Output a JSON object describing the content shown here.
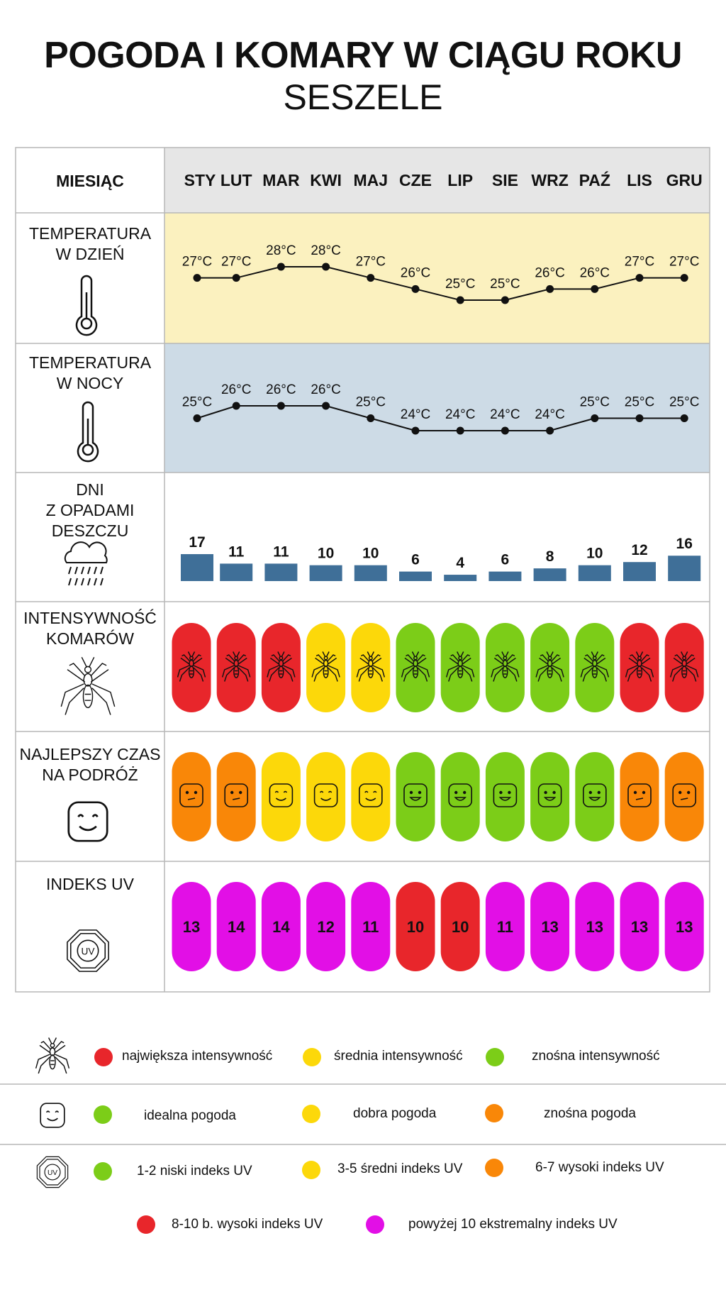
{
  "title": "POGODA I KOMARY W CIĄGU ROKU",
  "subtitle": "SESZELE",
  "header": {
    "label": "MIESIĄC"
  },
  "months": [
    "STY",
    "LUT",
    "MAR",
    "KWI",
    "MAJ",
    "CZE",
    "LIP",
    "SIE",
    "WRZ",
    "PAŹ",
    "LIS",
    "GRU"
  ],
  "rows": {
    "day_temp": {
      "label_l1": "TEMPERATURA",
      "label_l2": "W DZIEŃ",
      "icon": "thermometer-icon",
      "bg": "#fbf1bf"
    },
    "night_temp": {
      "label_l1": "TEMPERATURA",
      "label_l2": "W NOCY",
      "icon": "thermometer-icon",
      "bg": "#cddbe6"
    },
    "rain": {
      "label_l1": "DNI",
      "label_l2": "Z OPADAMI",
      "label_l3": "DESZCZU",
      "icon": "rain-cloud-icon"
    },
    "mosquito": {
      "label_l1": "INTENSYWNOŚĆ",
      "label_l2": "KOMARÓW",
      "icon": "mosquito-icon"
    },
    "travel": {
      "label_l1": "NAJLEPSZY CZAS",
      "label_l2": "NA PODRÓŻ",
      "icon": "smiley-icon"
    },
    "uv": {
      "label_l1": "INDEKS UV",
      "icon": "uv-sun-icon"
    }
  },
  "chart_data": {
    "type": "table",
    "categories": [
      "STY",
      "LUT",
      "MAR",
      "KWI",
      "MAJ",
      "CZE",
      "LIP",
      "SIE",
      "WRZ",
      "PAŹ",
      "LIS",
      "GRU"
    ],
    "series": [
      {
        "name": "TEMPERATURA W DZIEŃ",
        "unit": "°C",
        "values": [
          27,
          27,
          28,
          28,
          27,
          26,
          25,
          25,
          26,
          26,
          27,
          27
        ],
        "labels": [
          "27°C",
          "27°C",
          "28°C",
          "28°C",
          "27°C",
          "26°C",
          "25°C",
          "25°C",
          "26°C",
          "26°C",
          "27°C",
          "27°C"
        ]
      },
      {
        "name": "TEMPERATURA W NOCY",
        "unit": "°C",
        "values": [
          25,
          26,
          26,
          26,
          25,
          24,
          24,
          24,
          24,
          25,
          25,
          25
        ],
        "labels": [
          "25°C",
          "26°C",
          "26°C",
          "26°C",
          "25°C",
          "24°C",
          "24°C",
          "24°C",
          "24°C",
          "25°C",
          "25°C",
          "25°C"
        ]
      },
      {
        "name": "DNI Z OPADAMI DESZCZU",
        "values": [
          17,
          11,
          11,
          10,
          10,
          6,
          4,
          6,
          8,
          10,
          12,
          16
        ],
        "labels": [
          "17",
          "11",
          "11",
          "10",
          "10",
          "6",
          "4",
          "6",
          "8",
          "10",
          "12",
          "16"
        ],
        "color": "#3f6f98"
      },
      {
        "name": "INTENSYWNOŚĆ KOMARÓW",
        "levels": [
          "high",
          "high",
          "high",
          "medium",
          "medium",
          "low",
          "low",
          "low",
          "low",
          "low",
          "high",
          "high"
        ]
      },
      {
        "name": "NAJLEPSZY CZAS NA PODRÓŻ",
        "levels": [
          "tolerable",
          "tolerable",
          "good",
          "good",
          "good",
          "ideal",
          "ideal",
          "ideal",
          "ideal",
          "ideal",
          "tolerable",
          "tolerable"
        ]
      },
      {
        "name": "INDEKS UV",
        "values": [
          13,
          14,
          14,
          12,
          11,
          10,
          10,
          11,
          13,
          13,
          13,
          13
        ],
        "labels": [
          "13",
          "14",
          "14",
          "12",
          "11",
          "10",
          "10",
          "11",
          "13",
          "13",
          "13",
          "13"
        ]
      }
    ]
  },
  "colors": {
    "red": "#e8262b",
    "yellow": "#fcd80a",
    "green": "#7ccd18",
    "orange": "#f98708",
    "magenta": "#e20fe6",
    "bar": "#3f6f98",
    "header_bg": "#e6e6e6",
    "grid": "#b7b7b7"
  },
  "legend": {
    "mosquito": {
      "icon": "mosquito-icon",
      "items": [
        {
          "color": "red",
          "label": "największa intensywność"
        },
        {
          "color": "yellow",
          "label": "średnia intensywność"
        },
        {
          "color": "green",
          "label": "znośna intensywność"
        }
      ]
    },
    "travel": {
      "icon": "smiley-icon",
      "items": [
        {
          "color": "green",
          "label": "idealna pogoda"
        },
        {
          "color": "yellow",
          "label": "dobra pogoda"
        },
        {
          "color": "orange",
          "label": "znośna pogoda"
        }
      ]
    },
    "uv": {
      "icon": "uv-sun-icon",
      "items": [
        {
          "color": "green",
          "label": "1-2 niski indeks UV"
        },
        {
          "color": "yellow",
          "label": "3-5 średni indeks UV"
        },
        {
          "color": "orange",
          "label": "6-7 wysoki indeks UV"
        },
        {
          "color": "red",
          "label": "8-10 b. wysoki indeks UV"
        },
        {
          "color": "magenta",
          "label": "powyżej 10 ekstremalny indeks UV"
        }
      ]
    }
  }
}
